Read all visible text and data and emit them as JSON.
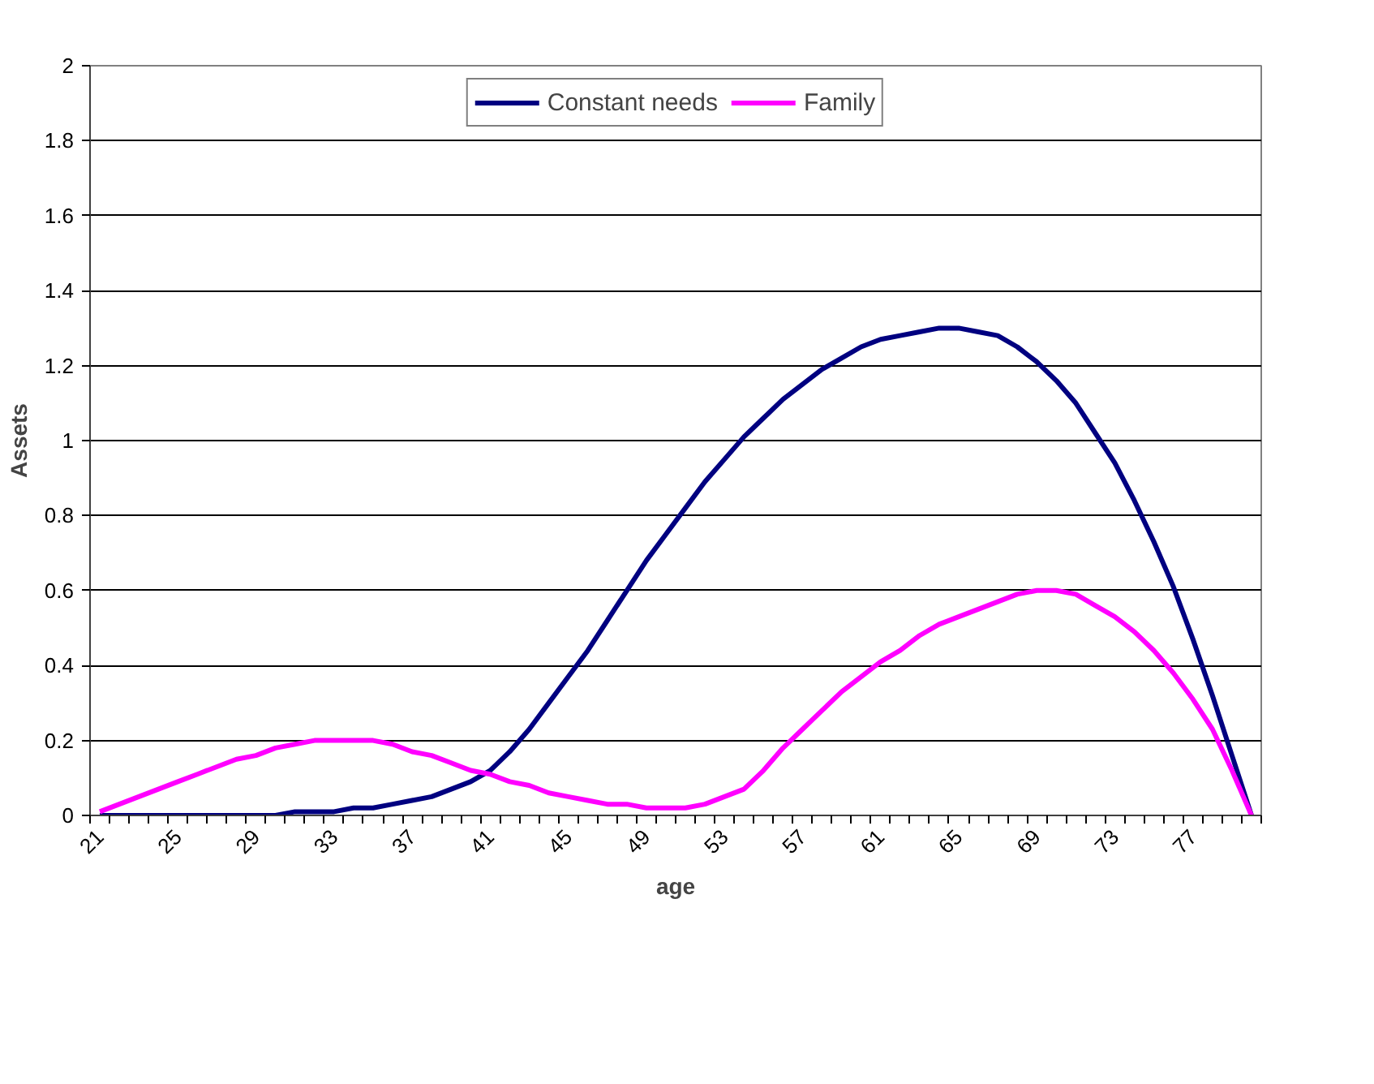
{
  "chart_data": {
    "type": "line",
    "xlabel": "age",
    "ylabel": "Assets",
    "categories": [
      "21",
      null,
      null,
      null,
      "25",
      null,
      null,
      null,
      "29",
      null,
      null,
      null,
      "33",
      null,
      null,
      null,
      "37",
      null,
      null,
      null,
      "41",
      null,
      null,
      null,
      "45",
      null,
      null,
      null,
      "49",
      null,
      null,
      null,
      "53",
      null,
      null,
      null,
      "57",
      null,
      null,
      null,
      "61",
      null,
      null,
      null,
      "65",
      null,
      null,
      null,
      "69",
      null,
      null,
      null,
      "73",
      null,
      null,
      null,
      "77",
      null,
      null,
      null
    ],
    "series": [
      {
        "name": "Constant needs",
        "color": "#000080",
        "values": [
          0,
          0,
          0,
          0,
          0,
          0,
          0,
          0,
          0,
          0,
          0.01,
          0.01,
          0.01,
          0.02,
          0.02,
          0.03,
          0.04,
          0.05,
          0.07,
          0.09,
          0.12,
          0.17,
          0.23,
          0.3,
          0.37,
          0.44,
          0.52,
          0.6,
          0.68,
          0.75,
          0.82,
          0.89,
          0.95,
          1.01,
          1.06,
          1.11,
          1.15,
          1.19,
          1.22,
          1.25,
          1.27,
          1.28,
          1.29,
          1.3,
          1.3,
          1.29,
          1.28,
          1.25,
          1.21,
          1.16,
          1.1,
          1.02,
          0.94,
          0.84,
          0.73,
          0.61,
          0.47,
          0.32,
          0.16,
          0
        ]
      },
      {
        "name": "Family",
        "color": "#ff00ff",
        "values": [
          0.01,
          0.03,
          0.05,
          0.07,
          0.09,
          0.11,
          0.13,
          0.15,
          0.16,
          0.18,
          0.19,
          0.2,
          0.2,
          0.2,
          0.2,
          0.19,
          0.17,
          0.16,
          0.14,
          0.12,
          0.11,
          0.09,
          0.08,
          0.06,
          0.05,
          0.04,
          0.03,
          0.03,
          0.02,
          0.02,
          0.02,
          0.03,
          0.05,
          0.07,
          0.12,
          0.18,
          0.23,
          0.28,
          0.33,
          0.37,
          0.41,
          0.44,
          0.48,
          0.51,
          0.53,
          0.55,
          0.57,
          0.59,
          0.6,
          0.6,
          0.59,
          0.56,
          0.53,
          0.49,
          0.44,
          0.38,
          0.31,
          0.23,
          0.12,
          0
        ]
      }
    ],
    "ylim": [
      0,
      2
    ],
    "yticks": [
      0,
      0.2,
      0.4,
      0.6,
      0.8,
      1,
      1.2,
      1.4,
      1.6,
      1.8,
      2
    ],
    "grid": "y",
    "legend": "top",
    "marker": "none",
    "line_style": "solid"
  }
}
